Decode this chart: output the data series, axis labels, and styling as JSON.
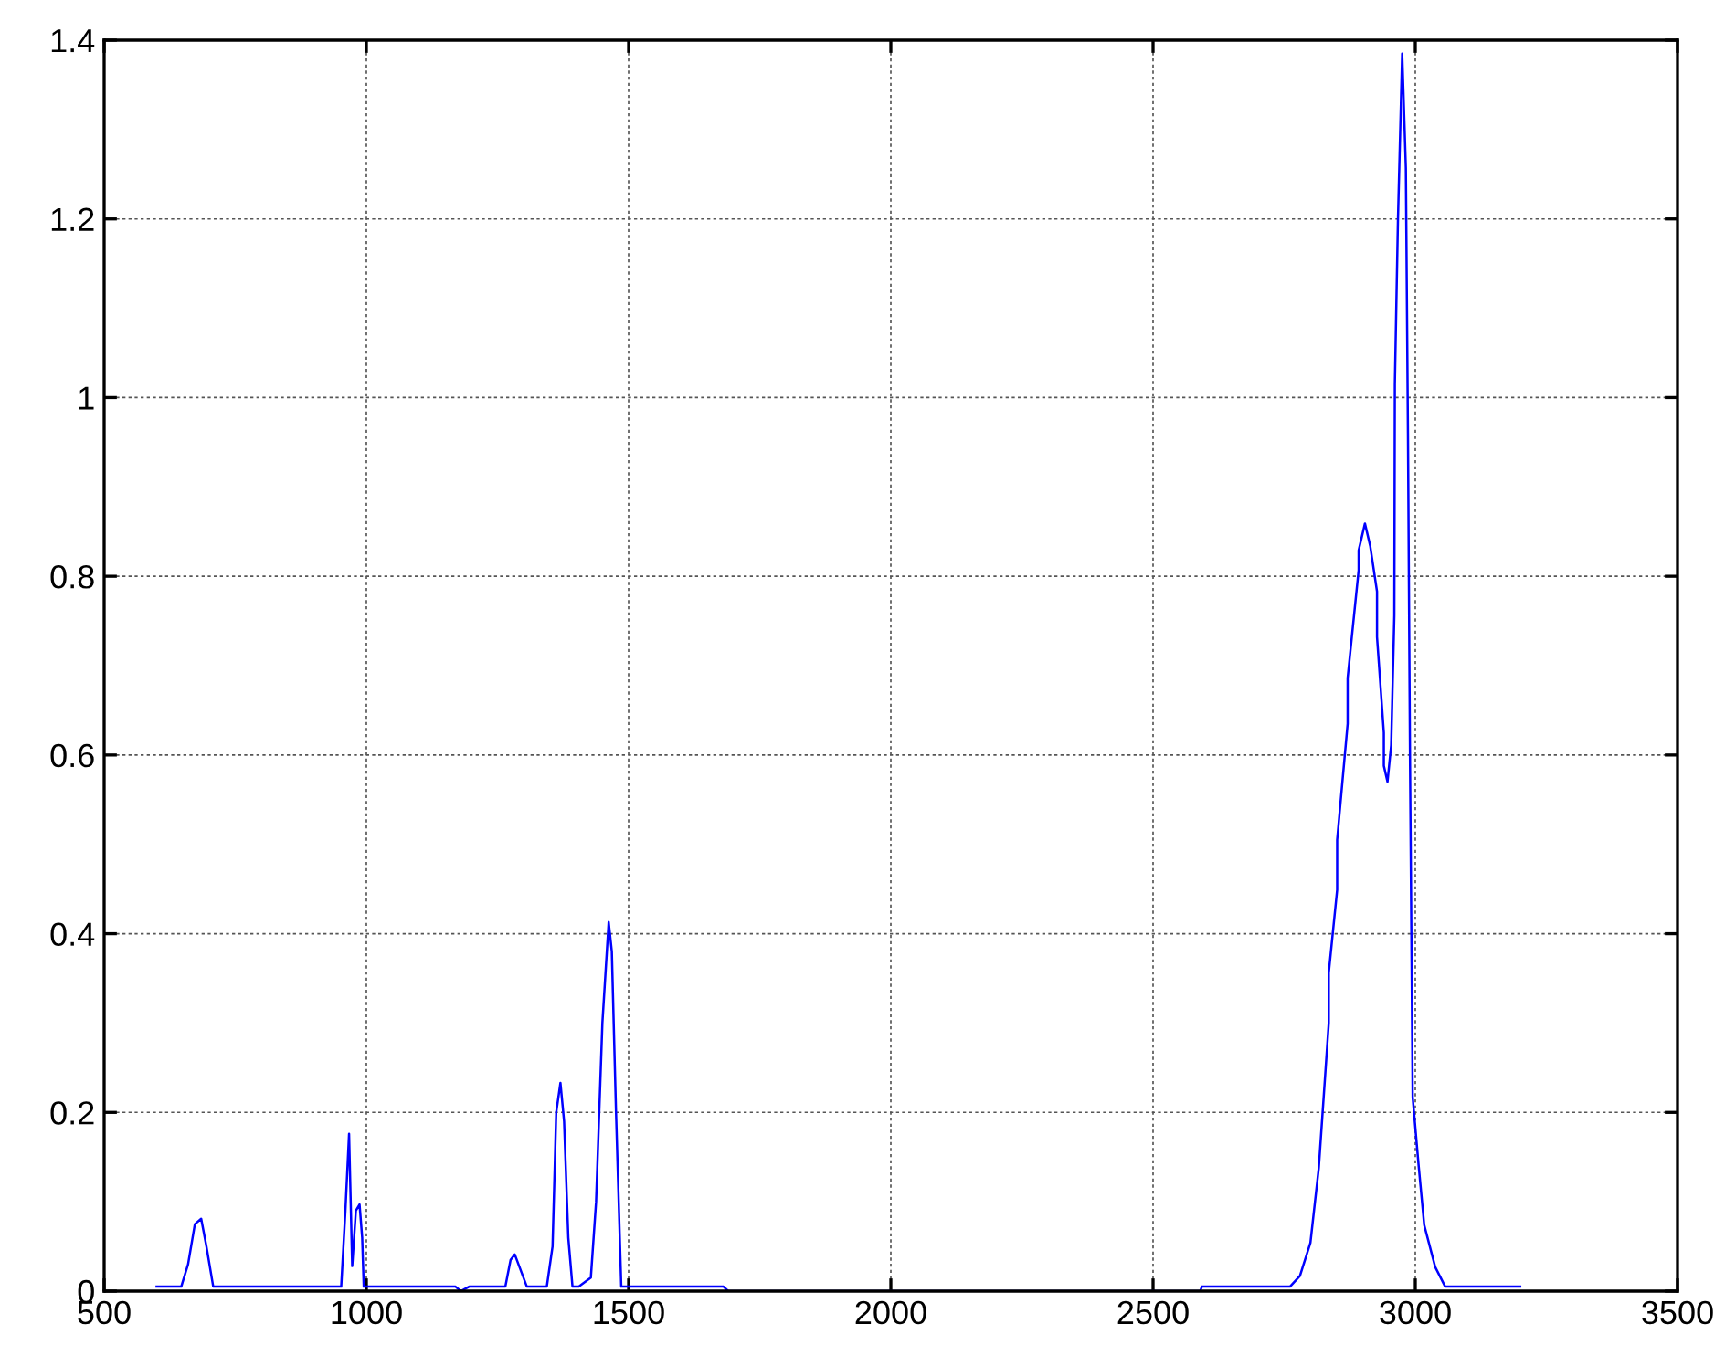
{
  "chart_data": {
    "type": "line",
    "x": [
      600,
      647,
      660,
      673,
      685,
      695,
      708,
      952,
      960,
      967,
      973,
      980,
      987,
      992,
      995,
      1170,
      1180,
      1196,
      1265,
      1275,
      1283,
      1290,
      1306,
      1344,
      1355,
      1362,
      1370,
      1377,
      1385,
      1393,
      1405,
      1428,
      1438,
      1450,
      1462,
      1468,
      1476,
      1486,
      1681,
      1690,
      2590,
      2593,
      2761,
      2780,
      2800,
      2816,
      2835,
      2835,
      2851,
      2851,
      2871,
      2871,
      2892,
      2892,
      2904,
      2914,
      2927,
      2927,
      2940,
      2940,
      2947,
      2954,
      2960,
      2961,
      2967,
      2975,
      2982,
      2986,
      2990,
      2995,
      3006,
      3017,
      3038,
      3057,
      3200
    ],
    "series": [
      {
        "color": "#0000ff",
        "values": [
          0.005,
          0.005,
          0.03,
          0.075,
          0.081,
          0.05,
          0.005,
          0.005,
          0.09,
          0.176,
          0.028,
          0.09,
          0.097,
          0.06,
          0.005,
          0.005,
          0,
          0.005,
          0.005,
          0.035,
          0.041,
          0.03,
          0.005,
          0.005,
          0.05,
          0.2,
          0.233,
          0.19,
          0.06,
          0.005,
          0.005,
          0.015,
          0.1,
          0.3,
          0.413,
          0.38,
          0.2,
          0.005,
          0.005,
          0,
          0,
          0.005,
          0.005,
          0.017,
          0.054,
          0.138,
          0.3,
          0.356,
          0.449,
          0.505,
          0.635,
          0.686,
          0.807,
          0.829,
          0.859,
          0.834,
          0.783,
          0.732,
          0.625,
          0.588,
          0.57,
          0.611,
          0.756,
          1.015,
          1.201,
          1.385,
          1.257,
          0.96,
          0.588,
          0.217,
          0.143,
          0.074,
          0.027,
          0.005,
          0.005
        ]
      }
    ],
    "xlim": [
      500,
      3500
    ],
    "xticks": [
      500,
      1000,
      1500,
      2000,
      2500,
      3000,
      3500
    ],
    "ylim": [
      0,
      1.4
    ],
    "yticks": [
      0,
      0.2,
      0.4,
      0.6,
      0.8,
      1,
      1.2,
      1.4
    ],
    "grid": true,
    "line_style": "solid",
    "marker": "none"
  }
}
